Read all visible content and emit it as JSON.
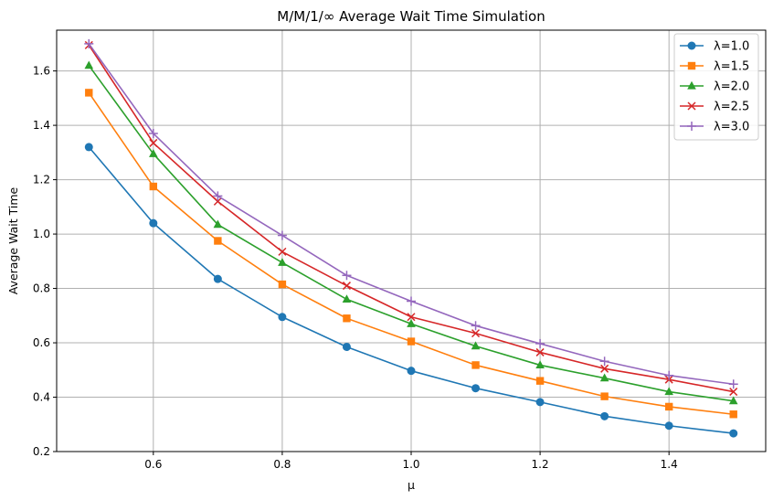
{
  "chart_data": {
    "type": "line",
    "title": "M/M/1/∞ Average Wait Time Simulation",
    "xlabel": "μ",
    "ylabel": "Average Wait Time",
    "x": [
      0.5,
      0.6,
      0.7,
      0.8,
      0.9,
      1.0,
      1.1,
      1.2,
      1.3,
      1.4,
      1.5
    ],
    "xlim": [
      0.45,
      1.55
    ],
    "ylim": [
      0.2,
      1.75
    ],
    "xticks": [
      0.6,
      0.8,
      1.0,
      1.2,
      1.4
    ],
    "xtick_labels": [
      "0.6",
      "0.8",
      "1.0",
      "1.2",
      "1.4"
    ],
    "yticks": [
      0.2,
      0.4,
      0.6,
      0.8,
      1.0,
      1.2,
      1.4,
      1.6
    ],
    "ytick_labels": [
      "0.2",
      "0.4",
      "0.6",
      "0.8",
      "1.0",
      "1.2",
      "1.4",
      "1.6"
    ],
    "grid": true,
    "legend_position": "top-right",
    "series": [
      {
        "name": "λ=1.0",
        "color": "#1f77b4",
        "marker": "circle",
        "values": [
          1.32,
          1.04,
          0.835,
          0.695,
          0.585,
          0.497,
          0.433,
          0.382,
          0.33,
          0.295,
          0.267
        ]
      },
      {
        "name": "λ=1.5",
        "color": "#ff7f0e",
        "marker": "square",
        "values": [
          1.52,
          1.175,
          0.975,
          0.815,
          0.69,
          0.605,
          0.518,
          0.46,
          0.403,
          0.365,
          0.337
        ]
      },
      {
        "name": "λ=2.0",
        "color": "#2ca02c",
        "marker": "triangle",
        "values": [
          1.62,
          1.295,
          1.035,
          0.895,
          0.76,
          0.67,
          0.588,
          0.518,
          0.47,
          0.42,
          0.386
        ]
      },
      {
        "name": "λ=2.5",
        "color": "#d62728",
        "marker": "x",
        "values": [
          1.695,
          1.335,
          1.12,
          0.935,
          0.81,
          0.695,
          0.635,
          0.565,
          0.505,
          0.465,
          0.42
        ]
      },
      {
        "name": "λ=3.0",
        "color": "#9467bd",
        "marker": "plus",
        "values": [
          1.7,
          1.37,
          1.14,
          0.995,
          0.848,
          0.753,
          0.663,
          0.597,
          0.532,
          0.48,
          0.448
        ]
      }
    ]
  }
}
